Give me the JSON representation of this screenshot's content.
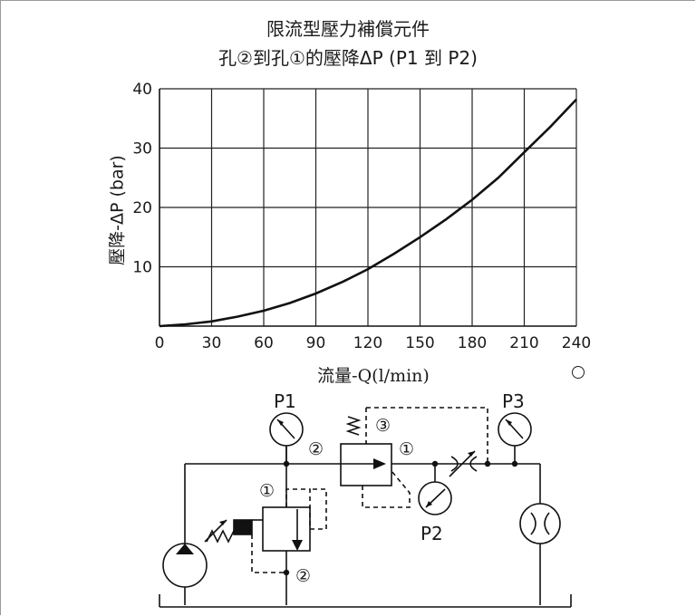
{
  "chart_data": {
    "type": "line",
    "title": "限流型壓力補償元件",
    "subtitle": "孔②到孔①的壓降ΔP (P1 到 P2)",
    "xlabel": "流量-Q(l/min)",
    "ylabel": "壓降-ΔP (bar)",
    "xlim": [
      0,
      240
    ],
    "ylim": [
      0,
      40
    ],
    "xticks": [
      0,
      30,
      60,
      90,
      120,
      150,
      180,
      210,
      240
    ],
    "yticks": [
      10,
      20,
      30,
      40
    ],
    "grid": true,
    "series": [
      {
        "x": [
          0,
          15,
          30,
          45,
          60,
          75,
          90,
          105,
          120,
          135,
          150,
          165,
          180,
          195,
          210,
          225,
          240
        ],
        "values": [
          0,
          0.3,
          0.8,
          1.6,
          2.6,
          3.9,
          5.5,
          7.4,
          9.6,
          12.2,
          15.0,
          18.0,
          21.3,
          25.0,
          29.3,
          33.6,
          38.2
        ]
      }
    ]
  },
  "circuit": {
    "labels": {
      "p1": "P1",
      "p2": "P2",
      "p3": "P3",
      "port2_top": "②",
      "port1_top": "①",
      "port3": "③",
      "port1_left": "①",
      "port2_bottom": "②"
    }
  }
}
